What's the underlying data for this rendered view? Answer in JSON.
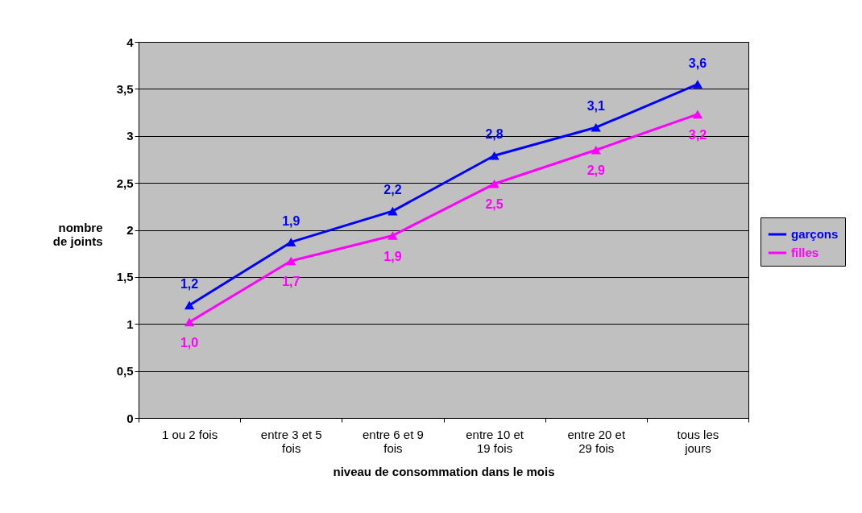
{
  "chart_data": {
    "type": "line",
    "xlabel": "niveau de consommation dans le mois",
    "ylabel": "nombre de joints",
    "categories": [
      "1 ou 2 fois",
      "entre 3 et 5 fois",
      "entre 6 et 9 fois",
      "entre 10 et 19 fois",
      "entre 20 et 29 fois",
      "tous les jours"
    ],
    "series": [
      {
        "name": "garçons",
        "color": "#0000ff",
        "values": [
          1.2,
          1.87,
          2.2,
          2.79,
          3.09,
          3.55
        ],
        "value_labels": [
          "1,2",
          "1,9",
          "2,2",
          "2,8",
          "3,1",
          "3,6"
        ]
      },
      {
        "name": "filles",
        "color": "#ff00ff",
        "values": [
          1.02,
          1.67,
          1.94,
          2.49,
          2.85,
          3.23
        ],
        "value_labels": [
          "1,0",
          "1,7",
          "1,9",
          "2,5",
          "2,9",
          "3,2"
        ]
      }
    ],
    "ylim": [
      0,
      4
    ],
    "yticks": [
      0,
      {
        "value": 0.5,
        "label": "0,5"
      },
      1,
      {
        "value": 1.5,
        "label": "1,5"
      },
      2,
      {
        "value": 2.5,
        "label": "2,5"
      },
      3,
      {
        "value": 3.5,
        "label": "3,5"
      },
      4
    ],
    "grid": "y",
    "legend": "right",
    "marker": "triangle",
    "line_style": "solid"
  }
}
